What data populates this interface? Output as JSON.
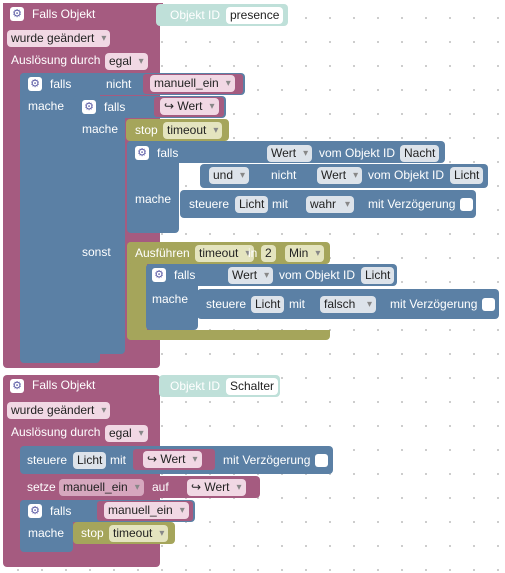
{
  "block1": {
    "title": "Falls Objekt",
    "object_label": "Objekt ID",
    "object_value": "presence",
    "event": "wurde geändert",
    "trigger_label": "Auslösung durch",
    "trigger_value": "egal",
    "if_label": "falls",
    "do_label": "mache",
    "not_label": "nicht",
    "var_manuell": "manuell_ein",
    "inner_if": "falls",
    "inner_do": "mache",
    "arrow_value": "↪ Wert",
    "stop_label": "stop",
    "stop_value": "timeout",
    "nested_if": "falls",
    "value_label": "Wert",
    "from_object": "vom Objekt ID",
    "obj_nacht": "Nacht",
    "and_label": "und",
    "not2_label": "nicht",
    "obj_licht": "Licht",
    "nested_do": "mache",
    "control_label": "steuere",
    "with_label": "mit",
    "val_true": "wahr",
    "delay_label": "mit Verzögerung",
    "else_label": "sonst",
    "exec_label": "Ausführen",
    "timeout_name": "timeout",
    "in_label": "in",
    "delay_num": "2",
    "unit": "Min",
    "timer_if": "falls",
    "timer_do": "mache",
    "val_false": "falsch"
  },
  "block2": {
    "title": "Falls Objekt",
    "object_label": "Objekt ID",
    "object_value": "Schalter",
    "event": "wurde geändert",
    "trigger_label": "Auslösung durch",
    "trigger_value": "egal",
    "control_label": "steuere",
    "obj_licht": "Licht",
    "with_label": "mit",
    "arrow_value": "↪ Wert",
    "delay_label": "mit Verzögerung",
    "set_label": "setze",
    "var_manuell": "manuell_ein",
    "on_label": "auf",
    "arrow_value2": "↪ Wert",
    "if_label": "falls",
    "if_var": "manuell_ein",
    "do_label": "mache",
    "stop_label": "stop",
    "stop_value": "timeout"
  },
  "colors": {
    "trigger": "#a55b80",
    "logic": "#5b80a5",
    "timer": "#a5a55b",
    "object_id": "#bfe0d9"
  },
  "icons": [
    "gear-icon",
    "dropdown-icon"
  ]
}
